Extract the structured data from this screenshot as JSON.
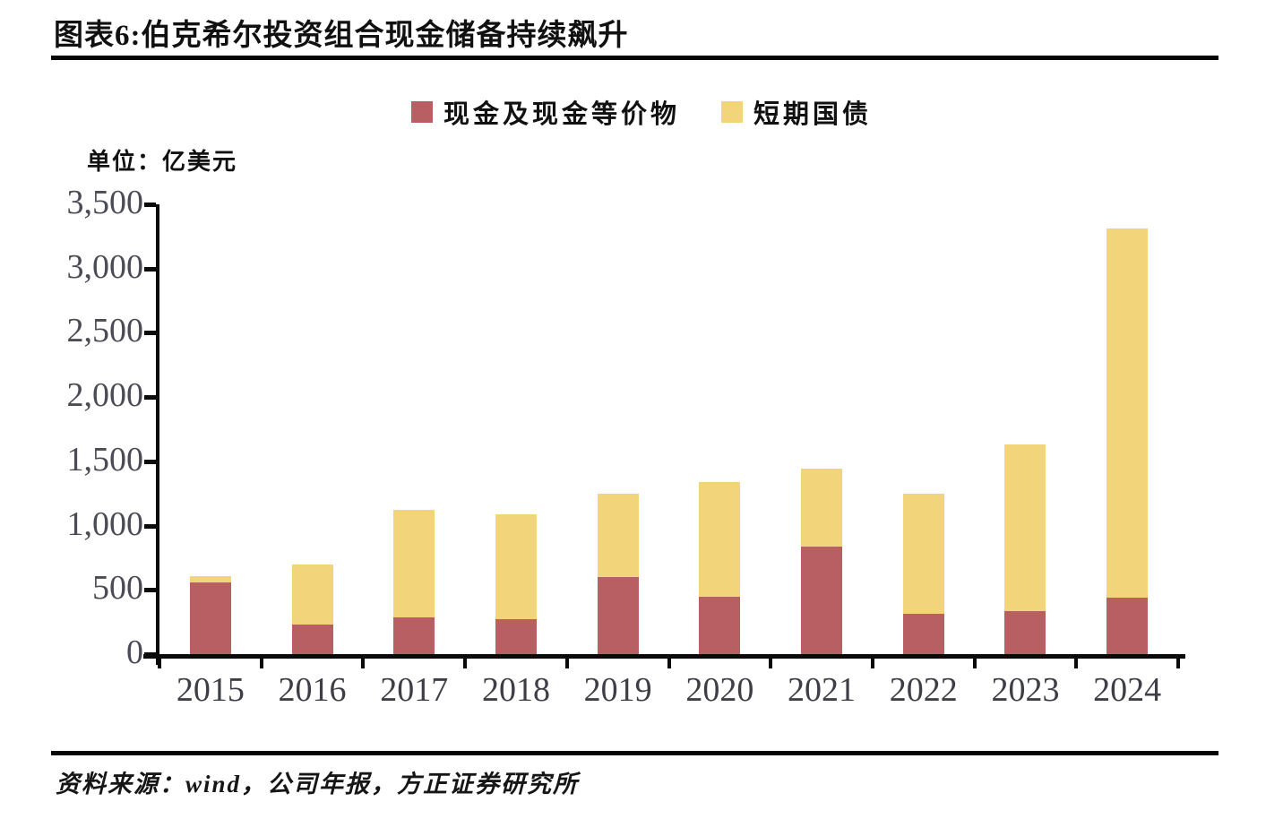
{
  "header": {
    "title": "图表6:伯克希尔投资组合现金储备持续飙升"
  },
  "chart": {
    "unit_label": "单位：亿美元"
  },
  "footer": {
    "source": "资料来源：wind，公司年报，方正证券研究所"
  },
  "colors": {
    "cash_red": "#b85f64",
    "tbill_yellow": "#f2d57a",
    "axis_black": "#0a0a0a",
    "axis_text_gray": "#4a4b55"
  },
  "chart_data": {
    "type": "bar",
    "stacked": true,
    "title": "图表6:伯克希尔投资组合现金储备持续飙升",
    "unit": "亿美元",
    "xlabel": "",
    "ylabel": "亿美元",
    "ylim": [
      0,
      3500
    ],
    "ytick_step": 500,
    "grid": false,
    "legend_position": "top",
    "categories": [
      "2015",
      "2016",
      "2017",
      "2018",
      "2019",
      "2020",
      "2021",
      "2022",
      "2023",
      "2024"
    ],
    "series": [
      {
        "name": "现金及现金等价物",
        "key": "cash",
        "color": "#b85f64",
        "values": [
          555,
          230,
          285,
          275,
          600,
          445,
          840,
          315,
          335,
          440
        ]
      },
      {
        "name": "短期国债",
        "key": "tbills",
        "color": "#f2d57a",
        "values": [
          50,
          470,
          840,
          815,
          650,
          895,
          600,
          930,
          1300,
          2870
        ]
      }
    ]
  }
}
